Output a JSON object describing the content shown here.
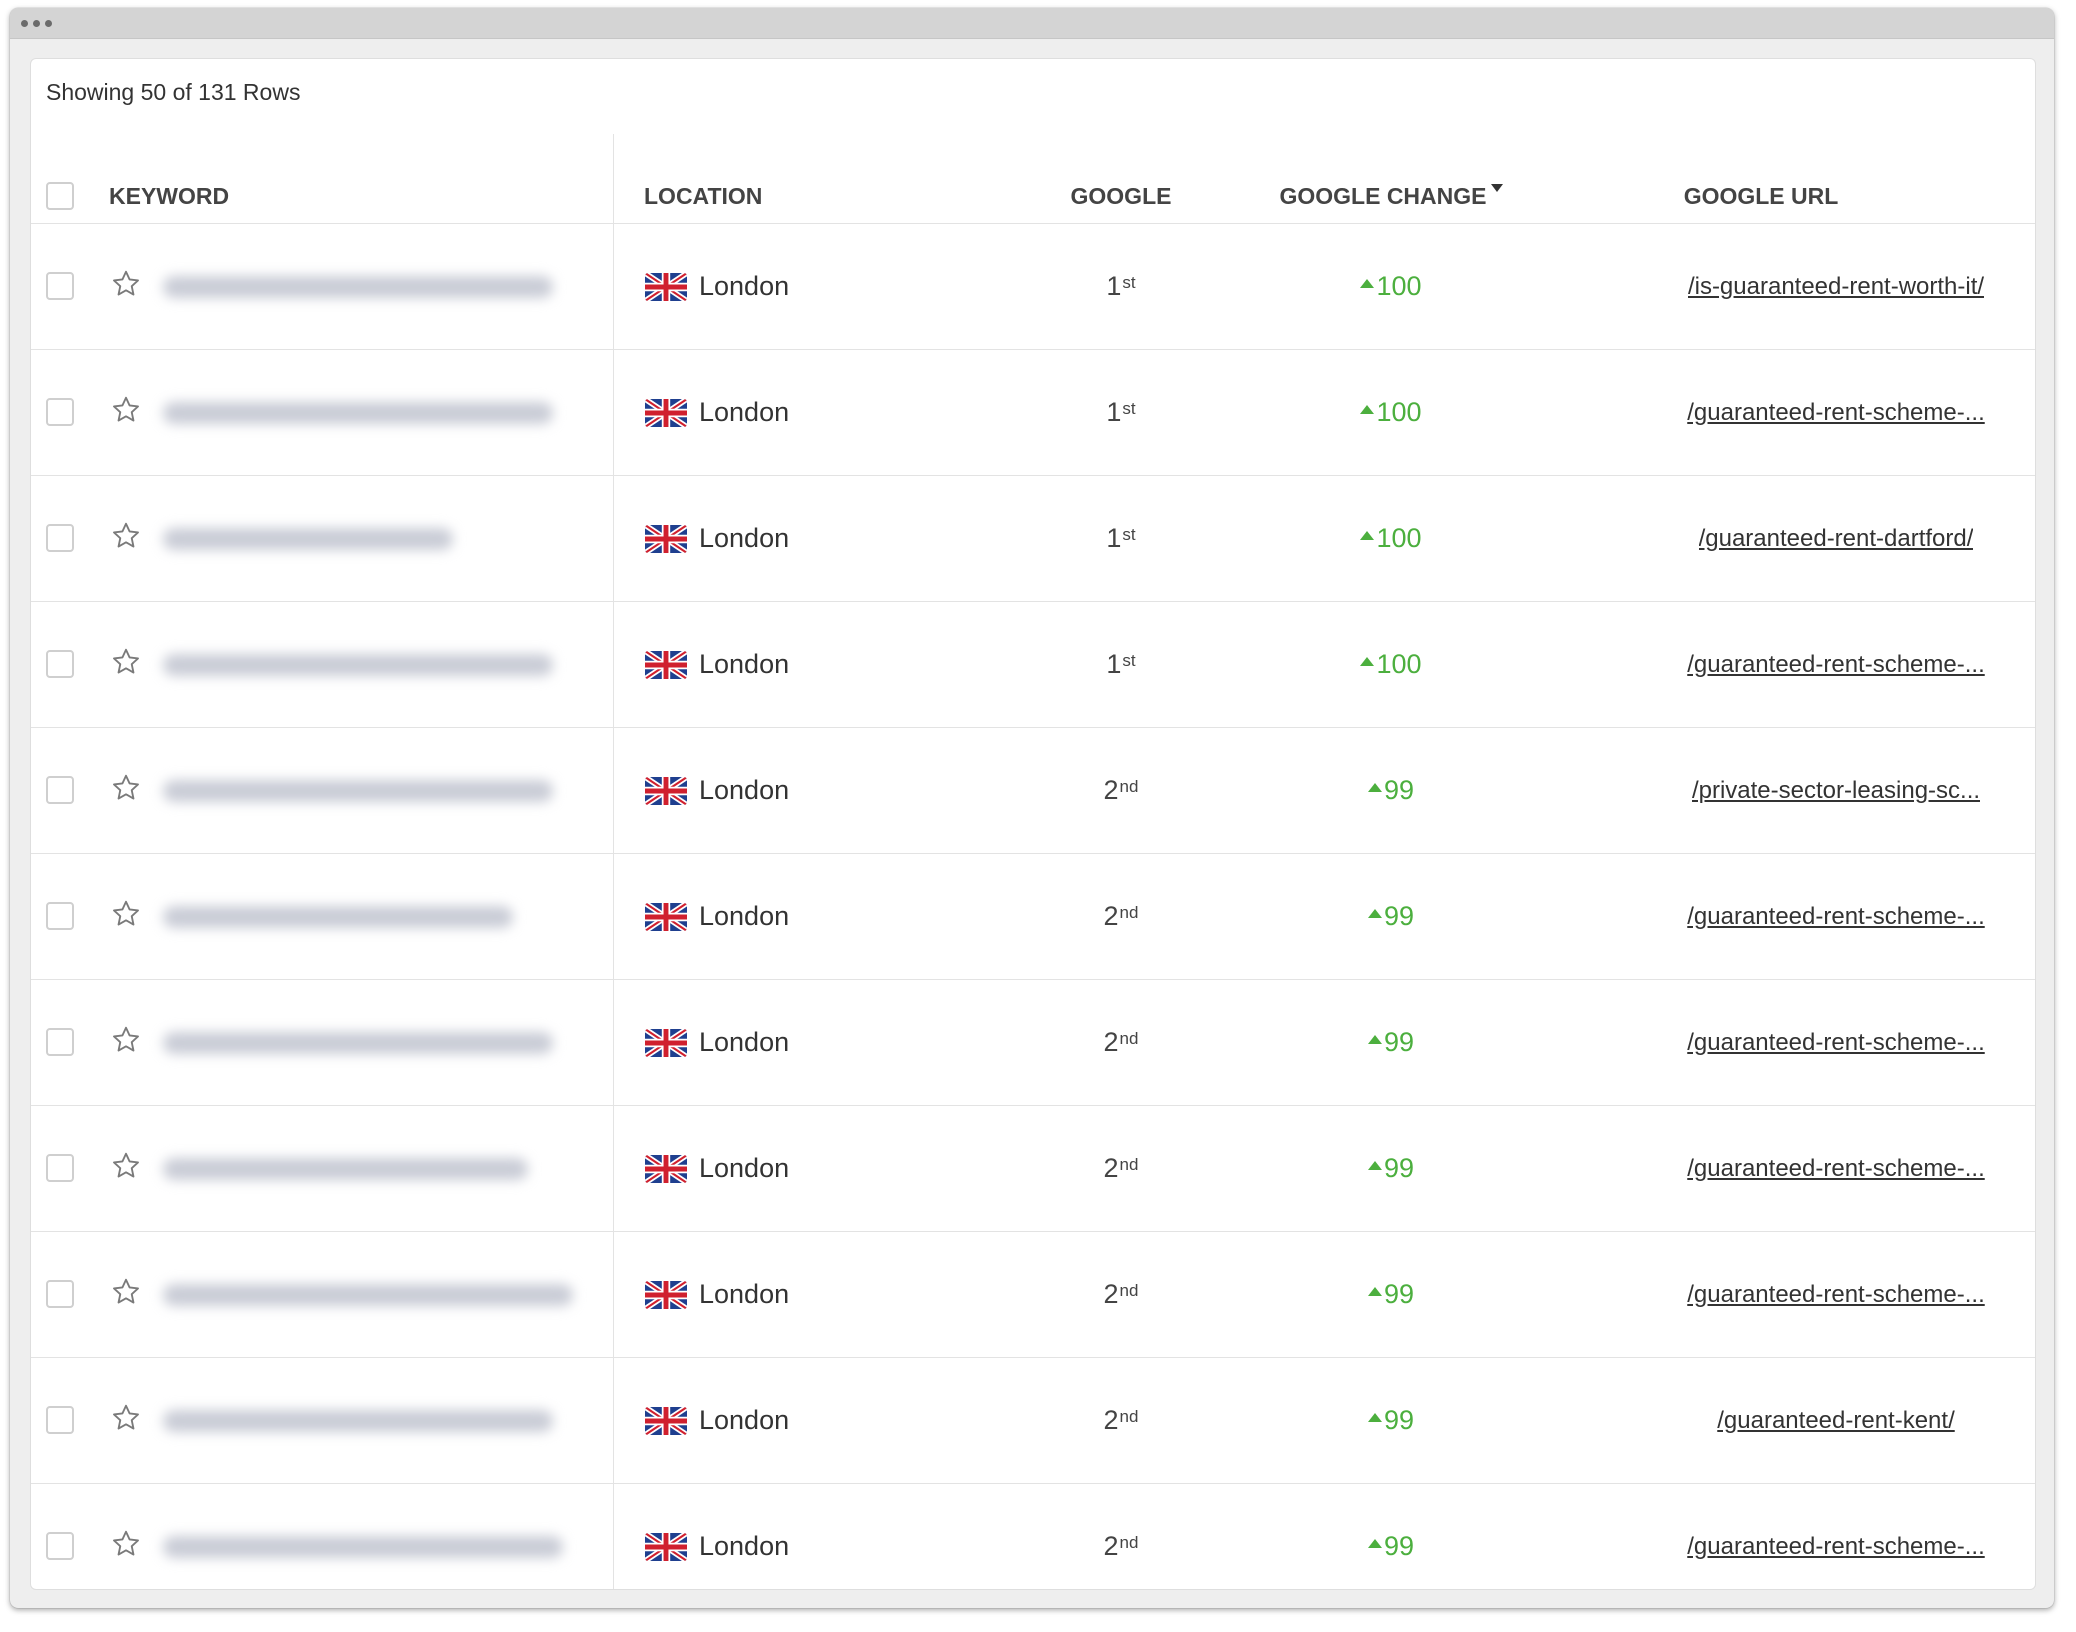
{
  "table": {
    "row_count_text": "Showing 50 of 131 Rows",
    "headers": {
      "keyword": "KEYWORD",
      "location": "LOCATION",
      "google": "GOOGLE",
      "google_change": "GOOGLE CHANGE",
      "google_url": "GOOGLE URL"
    },
    "sort_icon": "caret-down-icon",
    "rows": [
      {
        "location": "London",
        "rank": "1",
        "rank_suffix": "st",
        "change": "100",
        "url": "/is-guaranteed-rent-worth-it/"
      },
      {
        "location": "London",
        "rank": "1",
        "rank_suffix": "st",
        "change": "100",
        "url": "/guaranteed-rent-scheme-..."
      },
      {
        "location": "London",
        "rank": "1",
        "rank_suffix": "st",
        "change": "100",
        "url": "/guaranteed-rent-dartford/"
      },
      {
        "location": "London",
        "rank": "1",
        "rank_suffix": "st",
        "change": "100",
        "url": "/guaranteed-rent-scheme-..."
      },
      {
        "location": "London",
        "rank": "2",
        "rank_suffix": "nd",
        "change": "99",
        "url": "/private-sector-leasing-sc..."
      },
      {
        "location": "London",
        "rank": "2",
        "rank_suffix": "nd",
        "change": "99",
        "url": "/guaranteed-rent-scheme-..."
      },
      {
        "location": "London",
        "rank": "2",
        "rank_suffix": "nd",
        "change": "99",
        "url": "/guaranteed-rent-scheme-..."
      },
      {
        "location": "London",
        "rank": "2",
        "rank_suffix": "nd",
        "change": "99",
        "url": "/guaranteed-rent-scheme-..."
      },
      {
        "location": "London",
        "rank": "2",
        "rank_suffix": "nd",
        "change": "99",
        "url": "/guaranteed-rent-scheme-..."
      },
      {
        "location": "London",
        "rank": "2",
        "rank_suffix": "nd",
        "change": "99",
        "url": "/guaranteed-rent-kent/"
      },
      {
        "location": "London",
        "rank": "2",
        "rank_suffix": "nd",
        "change": "99",
        "url": "/guaranteed-rent-scheme-..."
      }
    ]
  },
  "colors": {
    "positive_change": "#4caf3e",
    "titlebar": "#d4d4d4"
  },
  "icons": {
    "star": "star-outline-icon",
    "flag": "uk-flag-icon",
    "change": "arrow-up-icon"
  }
}
